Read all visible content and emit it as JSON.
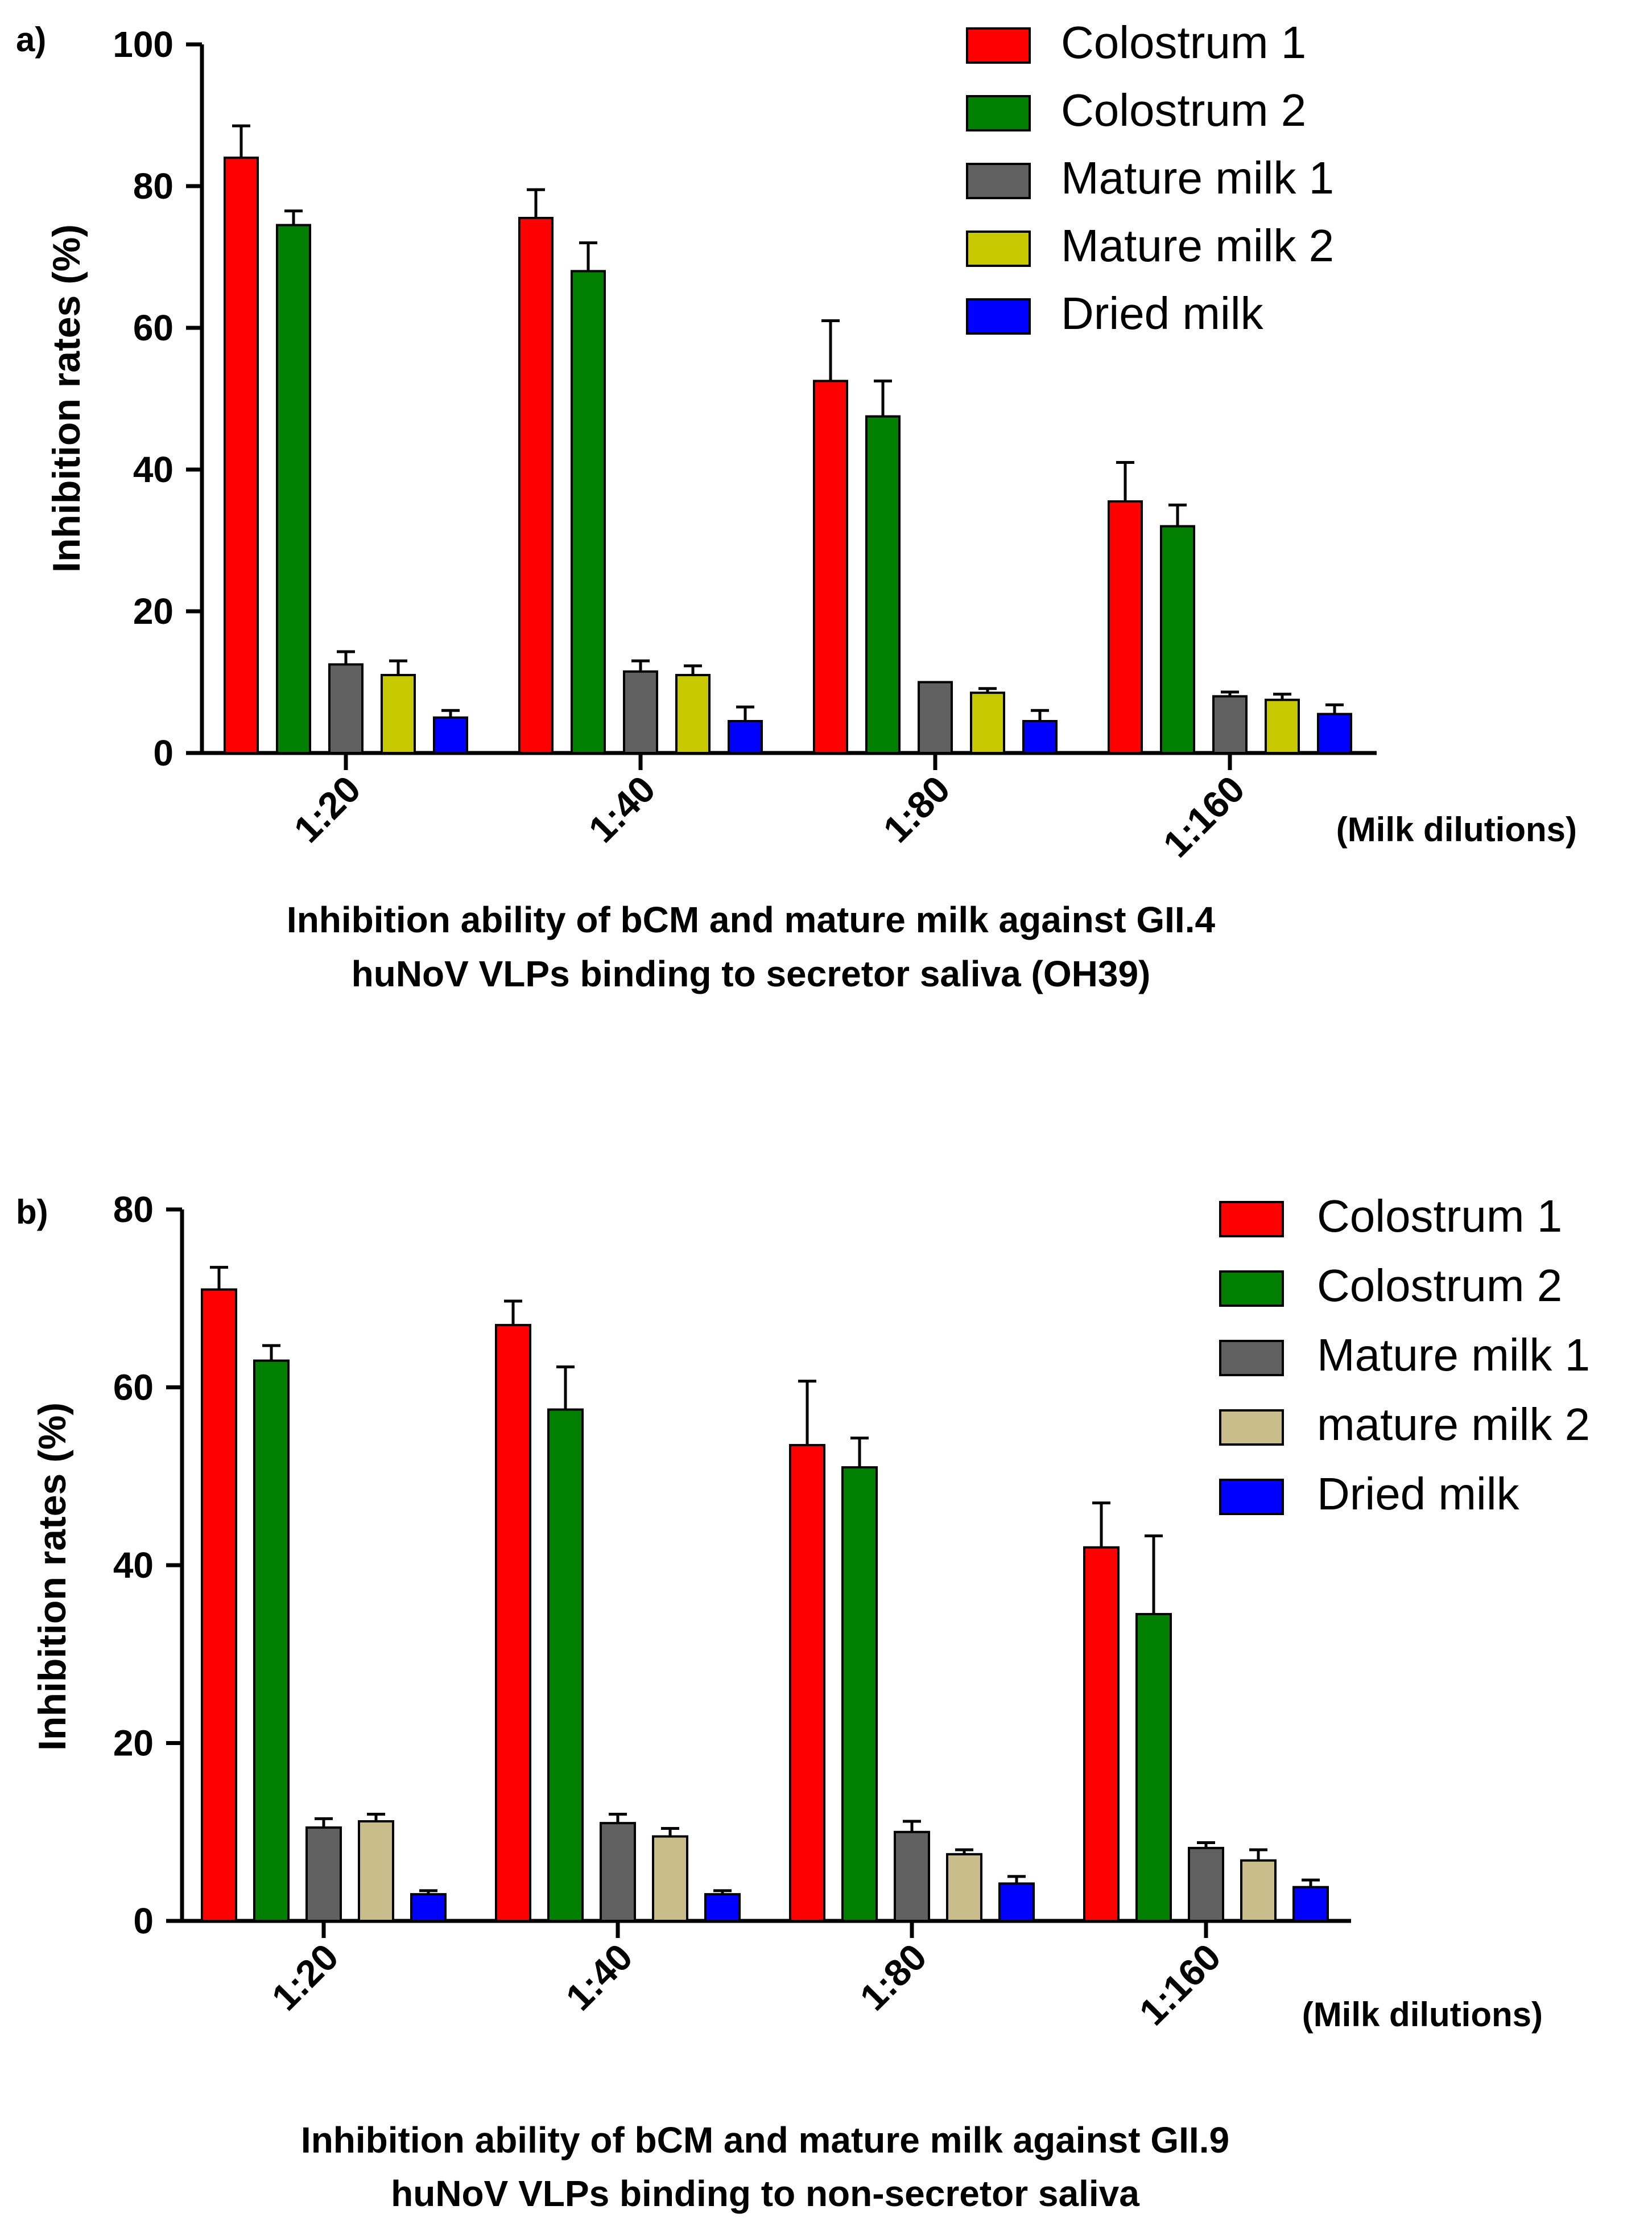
{
  "chart_data": [
    {
      "type": "bar",
      "panel_label": "a)",
      "categories": [
        "1:20",
        "1:40",
        "1:80",
        "1:160"
      ],
      "xunit": "(Milk dilutions)",
      "ylabel": "Inhibition rates (%)",
      "ylim": [
        0,
        100
      ],
      "yticks": [
        0,
        20,
        40,
        60,
        80,
        100
      ],
      "legend_position": "top-right",
      "caption": [
        "Inhibition ability of bCM and mature milk against GII.4",
        "huNoV VLPs binding to secretor saliva (OH39)"
      ],
      "series": [
        {
          "name": "Colostrum 1",
          "color": "#ff0000",
          "values": [
            84,
            75.5,
            52.5,
            35.5
          ],
          "errors": [
            4.5,
            4,
            8.5,
            5.5
          ]
        },
        {
          "name": "Colostrum 2",
          "color": "#007f00",
          "values": [
            74.5,
            68,
            47.5,
            32
          ],
          "errors": [
            2,
            4,
            5,
            3
          ]
        },
        {
          "name": "Mature milk 1",
          "color": "#606060",
          "values": [
            12.5,
            11.5,
            10,
            8
          ],
          "errors": [
            1.8,
            1.5,
            0,
            0.6
          ]
        },
        {
          "name": "Mature milk 2",
          "color": "#c8c800",
          "values": [
            11,
            11,
            8.5,
            7.5
          ],
          "errors": [
            2,
            1.3,
            0.6,
            0.8
          ]
        },
        {
          "name": "Dried milk",
          "color": "#0000ff",
          "values": [
            5,
            4.5,
            4.5,
            5.5
          ],
          "errors": [
            1,
            2,
            1.5,
            1.3
          ]
        }
      ]
    },
    {
      "type": "bar",
      "panel_label": "b)",
      "categories": [
        "1:20",
        "1:40",
        "1:80",
        "1:160"
      ],
      "xunit": "(Milk dilutions)",
      "ylabel": "Inhibition rates (%)",
      "ylim": [
        0,
        80
      ],
      "yticks": [
        0,
        20,
        40,
        60,
        80
      ],
      "legend_position": "top-right",
      "caption": [
        "Inhibition ability of bCM and mature milk against GII.9",
        "huNoV VLPs binding to non-secretor saliva"
      ],
      "series": [
        {
          "name": "Colostrum 1",
          "color": "#ff0000",
          "values": [
            71,
            67,
            53.5,
            42
          ],
          "errors": [
            2.5,
            2.7,
            7.2,
            5
          ]
        },
        {
          "name": "Colostrum 2",
          "color": "#007f00",
          "values": [
            63,
            57.5,
            51,
            34.5
          ],
          "errors": [
            1.7,
            4.8,
            3.3,
            8.8
          ]
        },
        {
          "name": "Mature milk 1",
          "color": "#606060",
          "values": [
            10.5,
            11,
            10,
            8.2
          ],
          "errors": [
            1,
            1,
            1.2,
            0.6
          ]
        },
        {
          "name": "mature milk 2",
          "color": "#c8bc8a",
          "values": [
            11.2,
            9.5,
            7.5,
            6.8
          ],
          "errors": [
            0.8,
            0.9,
            0.5,
            1.2
          ]
        },
        {
          "name": "Dried milk",
          "color": "#0000ff",
          "values": [
            3,
            3,
            4.2,
            3.8
          ],
          "errors": [
            0.4,
            0.4,
            0.8,
            0.8
          ]
        }
      ]
    }
  ]
}
